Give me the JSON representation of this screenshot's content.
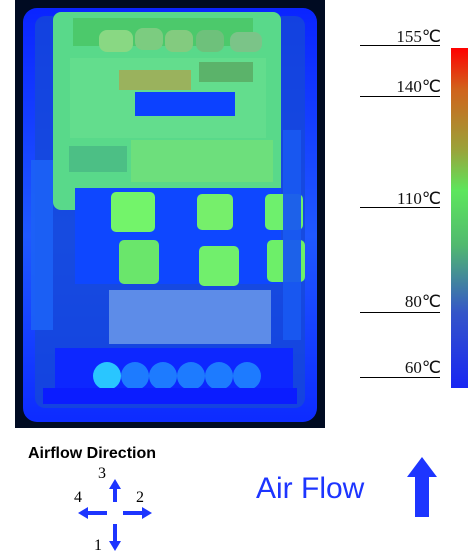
{
  "scale": {
    "labels": [
      "155℃",
      "140℃",
      "110℃",
      "80℃",
      "60℃"
    ],
    "colors": [
      "#ff0000",
      "#d1621b",
      "#9aa33a",
      "#5de65c",
      "#51b96f",
      "#3455c9",
      "#1826f3"
    ]
  },
  "airflow": {
    "title": "Airflow Direction",
    "labels": {
      "up": "3",
      "right": "2",
      "down": "1",
      "left": "4"
    },
    "main_label": "Air Flow",
    "accent": "#1d35ff"
  }
}
